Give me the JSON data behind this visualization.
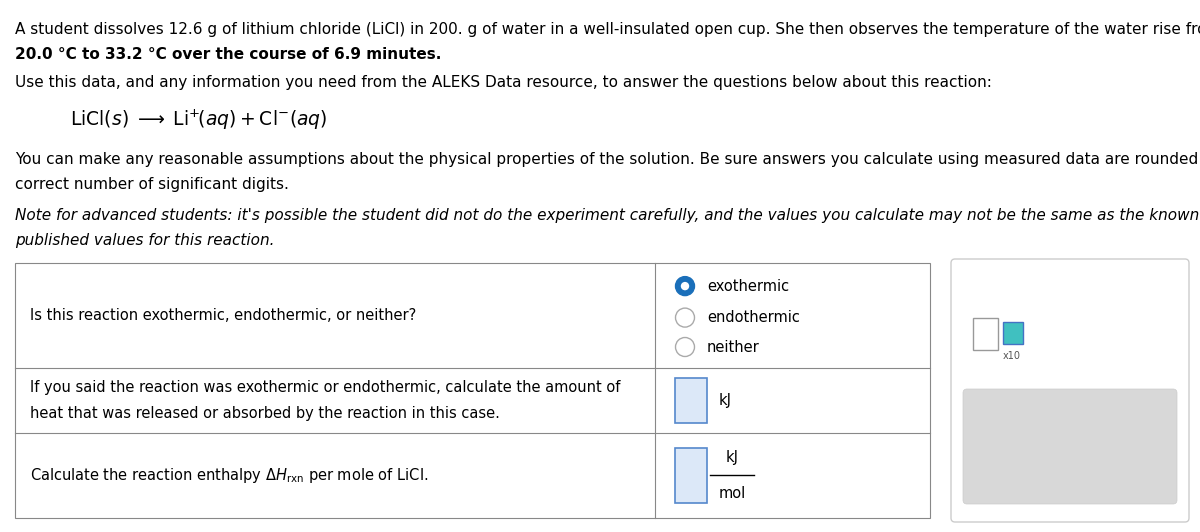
{
  "bg_color": "#ffffff",
  "text_color": "#000000",
  "para1_l1": "A student dissolves 12.6 g of lithium chloride (LiCl) in 200. g of water in a well-insulated open cup. She then observes the temperature of the water rise from",
  "para1_l2": "20.0 °C to 33.2 °C over the course of 6.9 minutes.",
  "para2": "Use this data, and any information you need from the ALEKS Data resource, to answer the questions below about this reaction:",
  "para3_l1": "You can make any reasonable assumptions about the physical properties of the solution. Be sure answers you calculate using measured data are rounded to the",
  "para3_l2": "correct number of significant digits.",
  "para4_l1": "Note for advanced students: it's possible the student did not do the experiment carefully, and the values you calculate may not be the same as the known and",
  "para4_l2": "published values for this reaction.",
  "row1_q": "Is this reaction exothermic, endothermic, or neither?",
  "row1_opts": [
    "exothermic",
    "endothermic",
    "neither"
  ],
  "row2_l1": "If you said the reaction was exothermic or endothermic, calculate the amount of",
  "row2_l2": "heat that was released or absorbed by the reaction in this case.",
  "row2_unit": "kJ",
  "row3_q": "Calculate the reaction enthalpy",
  "row3_sub": "rxn",
  "row3_end": " per mole of LiCl.",
  "row3_num": "kJ",
  "row3_den": "mol",
  "radio_sel_color": "#1a6fba",
  "radio_unsel_color": "#aaaaaa",
  "input_box_fill": "#dce8f8",
  "input_box_edge": "#5588cc",
  "table_line_color": "#888888",
  "side_border_color": "#cccccc",
  "button_bg": "#d8d8d8",
  "button_fg": "#555555",
  "fs_body": 11.0,
  "fs_eq": 13.0,
  "fs_table": 10.5,
  "fs_radio": 10.5,
  "fs_unit": 10.5,
  "fs_small": 7.0
}
